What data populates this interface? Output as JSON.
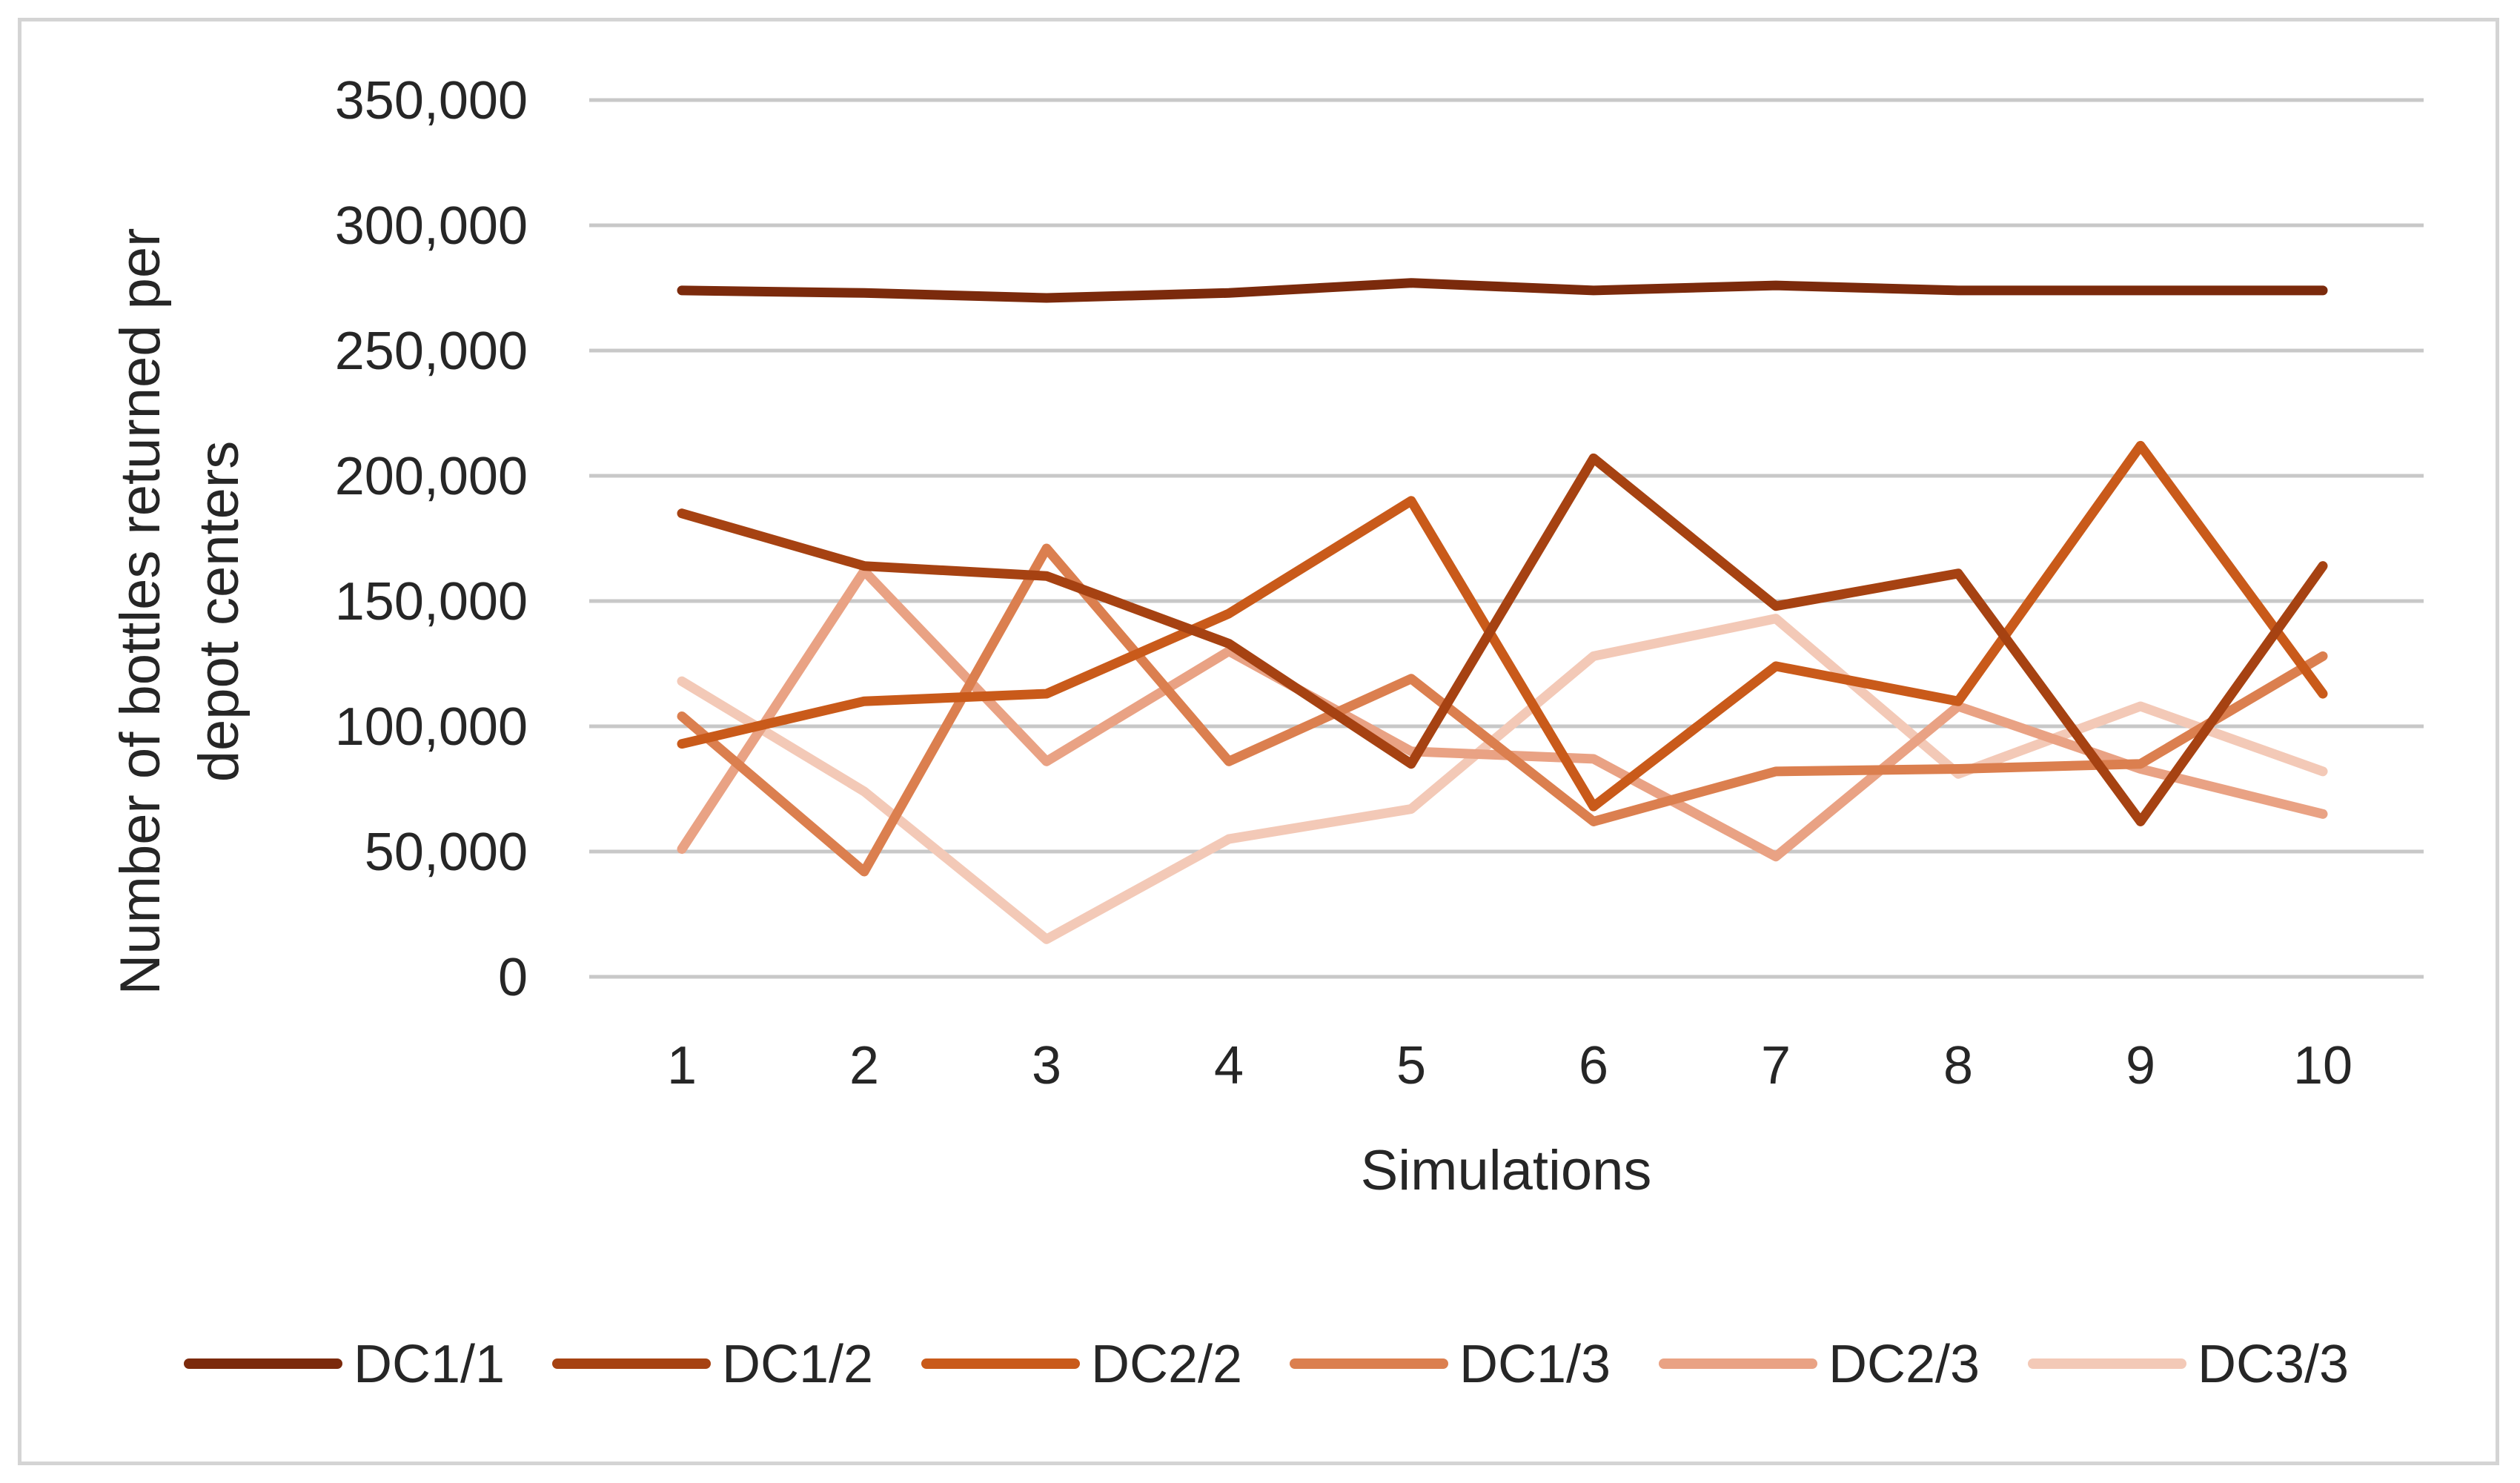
{
  "chart_data": {
    "type": "line",
    "title": "",
    "xlabel": "Simulations",
    "ylabel_lines": [
      "Number of bottles returned per",
      "depot centers"
    ],
    "categories": [
      "1",
      "2",
      "3",
      "4",
      "5",
      "6",
      "7",
      "8",
      "9",
      "10"
    ],
    "ylim": [
      0,
      350000
    ],
    "yticks": [
      0,
      50000,
      100000,
      150000,
      200000,
      250000,
      300000,
      350000
    ],
    "ytick_labels": [
      "0",
      "50,000",
      "100,000",
      "150,000",
      "200,000",
      "250,000",
      "300,000",
      "350,000"
    ],
    "grid": true,
    "legend_position": "bottom",
    "series": [
      {
        "name": "DC1/1",
        "color": "#7b2a0c",
        "values": [
          274000,
          273000,
          271000,
          273000,
          277000,
          274000,
          276000,
          274000,
          274000,
          274000
        ]
      },
      {
        "name": "DC1/2",
        "color": "#a64212",
        "values": [
          185000,
          164000,
          160000,
          133000,
          85000,
          207000,
          148000,
          161000,
          62000,
          164000
        ]
      },
      {
        "name": "DC2/2",
        "color": "#c95a1a",
        "values": [
          93000,
          110000,
          113000,
          145000,
          190000,
          68000,
          124000,
          110000,
          212000,
          113000
        ]
      },
      {
        "name": "DC1/3",
        "color": "#db7f4f",
        "values": [
          104000,
          42000,
          171000,
          86000,
          119000,
          62000,
          82000,
          83000,
          85000,
          128000
        ]
      },
      {
        "name": "DC2/3",
        "color": "#e9a284",
        "values": [
          51000,
          162000,
          86000,
          130000,
          90000,
          87000,
          48000,
          108000,
          83000,
          65000
        ]
      },
      {
        "name": "DC3/3",
        "color": "#f3c9b7",
        "values": [
          118000,
          74000,
          15000,
          55000,
          67000,
          128000,
          143000,
          81000,
          108000,
          82000
        ]
      }
    ]
  }
}
